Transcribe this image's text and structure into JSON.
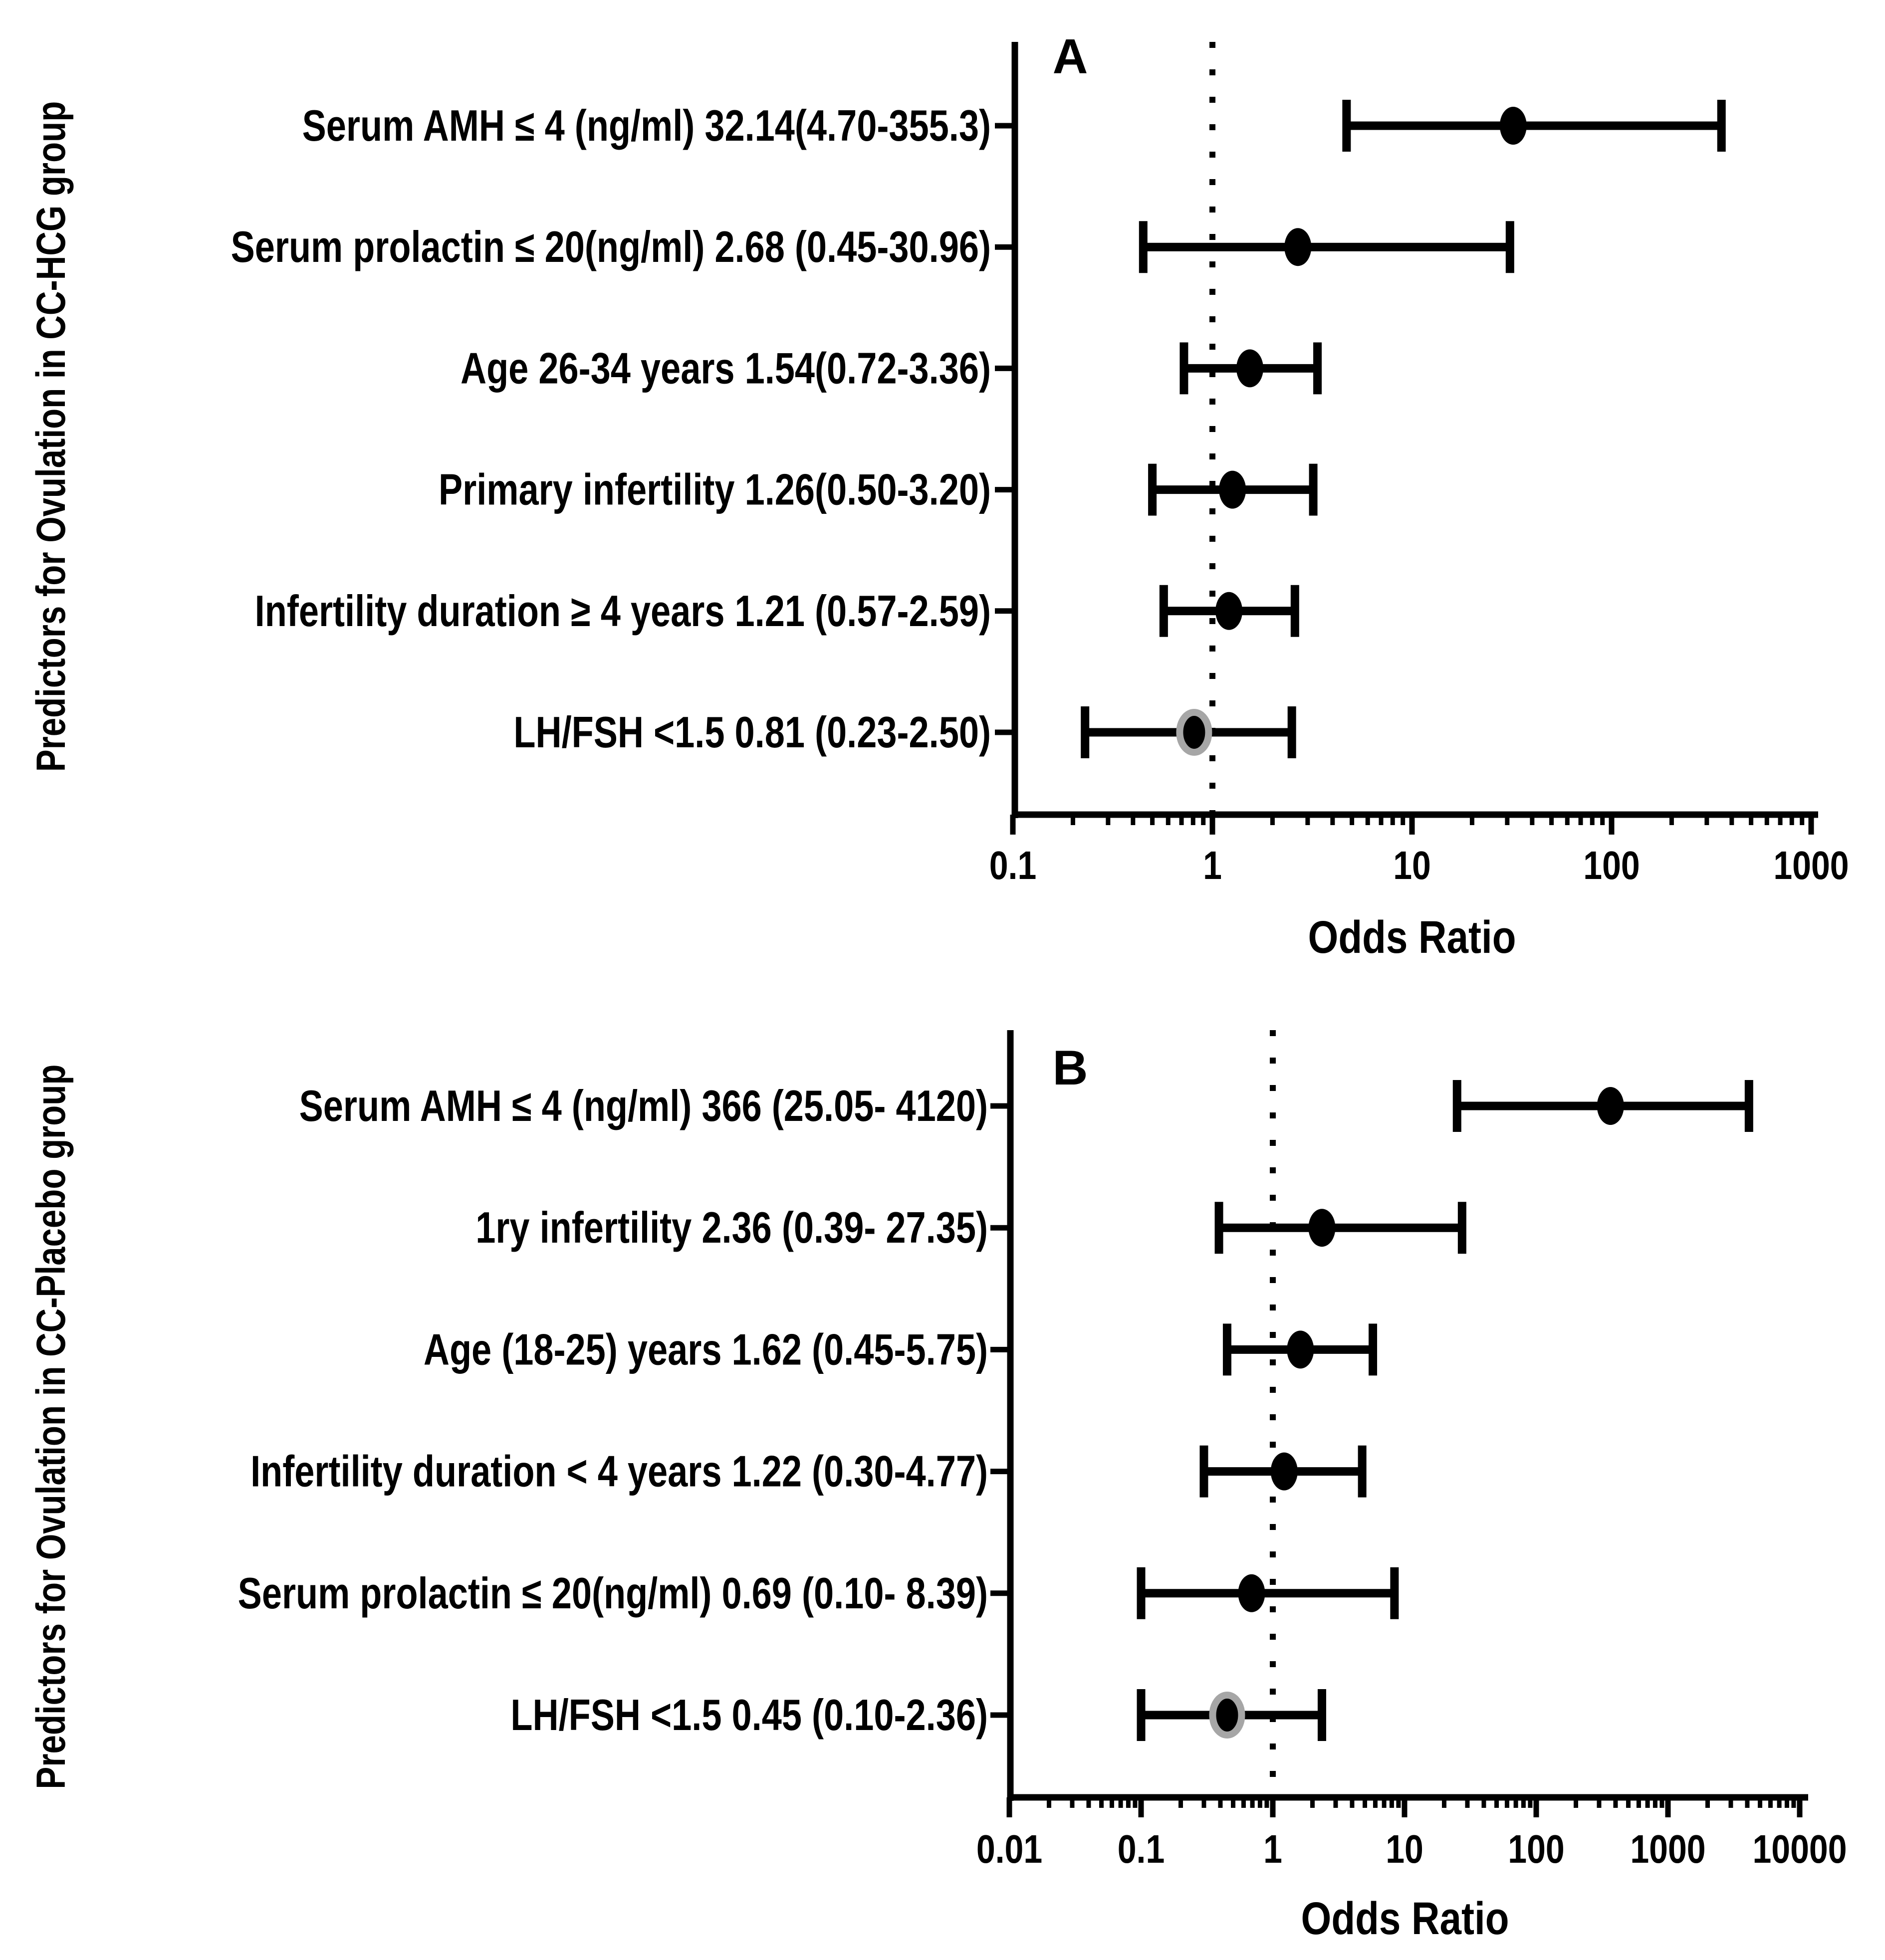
{
  "colors": {
    "ink": "#000000",
    "gray_ring": "#a6a6a6",
    "background": "#ffffff"
  },
  "chart_data": [
    {
      "type": "forest",
      "panel_letter": "A",
      "ylabel": "Predictors for Ovulation in CC-HCG group",
      "xlabel": "Odds Ratio",
      "x_scale": "log",
      "xlim": [
        0.1,
        1000
      ],
      "x_ticks": [
        0.1,
        1,
        10,
        100,
        1000
      ],
      "x_tick_labels": [
        "0.1",
        "1",
        "10",
        "100",
        "1000"
      ],
      "reference_line": 1,
      "grid": false,
      "rows": [
        {
          "label": "Serum AMH ≤ 4 (ng/ml) 32.14(4.70-355.3)",
          "odds_ratio": 32.14,
          "ci_low": 4.7,
          "ci_high": 355.3,
          "marker_style": "black"
        },
        {
          "label": "Serum prolactin ≤ 20(ng/ml) 2.68 (0.45-30.96)",
          "odds_ratio": 2.68,
          "ci_low": 0.45,
          "ci_high": 30.96,
          "marker_style": "black"
        },
        {
          "label": "Age 26-34 years 1.54(0.72-3.36)",
          "odds_ratio": 1.54,
          "ci_low": 0.72,
          "ci_high": 3.36,
          "marker_style": "black"
        },
        {
          "label": "Primary infertility 1.26(0.50-3.20)",
          "odds_ratio": 1.26,
          "ci_low": 0.5,
          "ci_high": 3.2,
          "marker_style": "black"
        },
        {
          "label": "Infertility duration ≥ 4 years 1.21 (0.57-2.59)",
          "odds_ratio": 1.21,
          "ci_low": 0.57,
          "ci_high": 2.59,
          "marker_style": "black"
        },
        {
          "label": "LH/FSH <1.5 0.81 (0.23-2.50)",
          "odds_ratio": 0.81,
          "ci_low": 0.23,
          "ci_high": 2.5,
          "marker_style": "black-gray-outline"
        }
      ]
    },
    {
      "type": "forest",
      "panel_letter": "B",
      "ylabel": "Predictors for Ovulation in CC-Placebo group",
      "xlabel": "Odds Ratio",
      "x_scale": "log",
      "xlim": [
        0.01,
        10000
      ],
      "x_ticks": [
        0.01,
        0.1,
        1,
        10,
        100,
        1000,
        10000
      ],
      "x_tick_labels": [
        "0.01",
        "0.1",
        "1",
        "10",
        "100",
        "1000",
        "10000"
      ],
      "reference_line": 1,
      "grid": false,
      "rows": [
        {
          "label": "Serum AMH ≤ 4 (ng/ml) 366 (25.05- 4120)",
          "odds_ratio": 366,
          "ci_low": 25.05,
          "ci_high": 4120,
          "marker_style": "black"
        },
        {
          "label": "1ry infertility 2.36 (0.39- 27.35)",
          "odds_ratio": 2.36,
          "ci_low": 0.39,
          "ci_high": 27.35,
          "marker_style": "black"
        },
        {
          "label": "Age (18-25) years 1.62 (0.45-5.75)",
          "odds_ratio": 1.62,
          "ci_low": 0.45,
          "ci_high": 5.75,
          "marker_style": "black"
        },
        {
          "label": "Infertility duration < 4 years 1.22 (0.30-4.77)",
          "odds_ratio": 1.22,
          "ci_low": 0.3,
          "ci_high": 4.77,
          "marker_style": "black"
        },
        {
          "label": "Serum prolactin ≤ 20(ng/ml) 0.69 (0.10- 8.39)",
          "odds_ratio": 0.69,
          "ci_low": 0.1,
          "ci_high": 8.39,
          "marker_style": "black"
        },
        {
          "label": "LH/FSH <1.5 0.45 (0.10-2.36)",
          "odds_ratio": 0.45,
          "ci_low": 0.1,
          "ci_high": 2.36,
          "marker_style": "black-gray-outline"
        }
      ]
    }
  ]
}
